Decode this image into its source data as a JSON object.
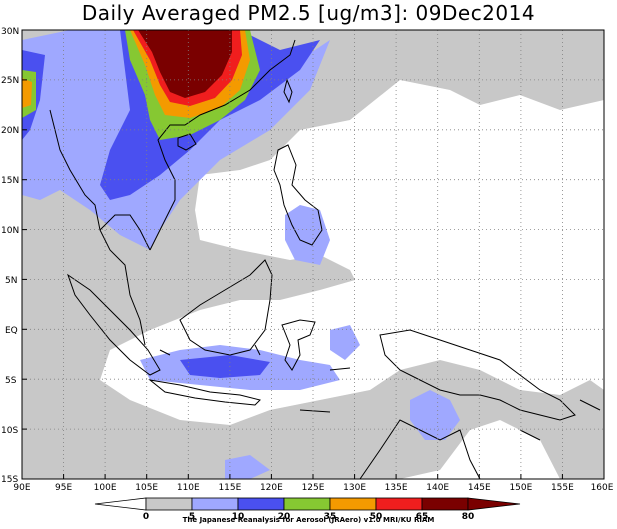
{
  "title": "Daily Averaged PM2.5 [ug/m3]: 09Dec2014",
  "credit": "The Japanese Reanalysis for Aerosol (JRAero) v1.0 MRI/KU RIAM",
  "lon_labels": [
    "90E",
    "95E",
    "100E",
    "105E",
    "110E",
    "115E",
    "120E",
    "125E",
    "130E",
    "135E",
    "140E",
    "145E",
    "150E",
    "155E",
    "160E"
  ],
  "lat_labels": [
    "30N",
    "25N",
    "20N",
    "15N",
    "10N",
    "5N",
    "EQ",
    "5S",
    "10S",
    "15S"
  ],
  "colorbar": {
    "labels": [
      "0",
      "5",
      "10",
      "20",
      "35",
      "50",
      "65",
      "80"
    ],
    "colors": [
      "#ffffff",
      "#c8c8c8",
      "#9fa8ff",
      "#4a50f0",
      "#86c832",
      "#f49a00",
      "#f01e1e",
      "#7a0000"
    ]
  },
  "map_data": {
    "lon_range": [
      90,
      160
    ],
    "lat_range": [
      -15,
      30
    ],
    "gridlines": true,
    "field": "Daily averaged PM2.5 concentration",
    "units": "ug/m3",
    "date": "09Dec2014"
  }
}
